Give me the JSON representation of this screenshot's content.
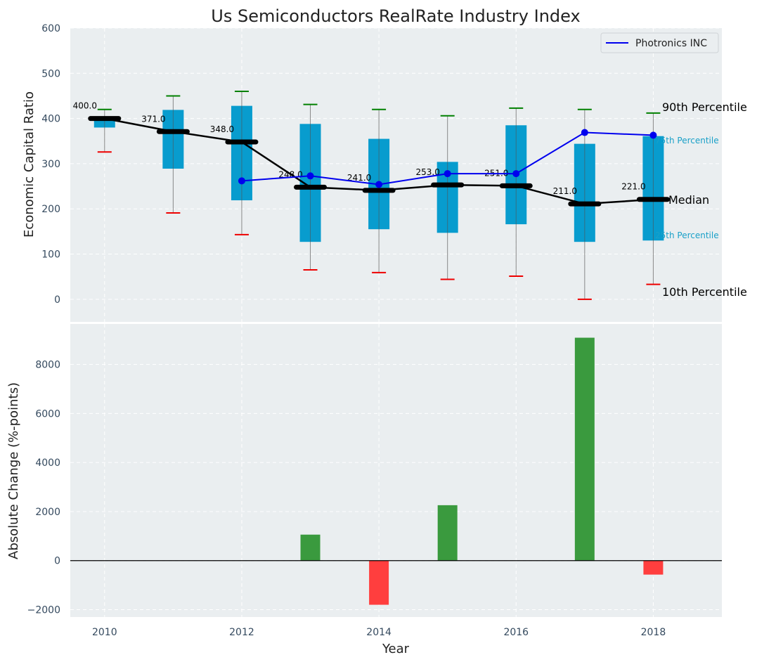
{
  "chart_data": [
    {
      "type": "box",
      "title": "Us Semiconductors RealRate Industry Index",
      "xlabel": "",
      "ylabel": "Economic Capital Ratio",
      "ylim": [
        -50,
        600
      ],
      "xlim": [
        2009.5,
        2019
      ],
      "yticks": [
        0,
        100,
        200,
        300,
        400,
        500,
        600
      ],
      "grid": true,
      "categories": [
        2010,
        2011,
        2012,
        2013,
        2014,
        2015,
        2016,
        2017,
        2018
      ],
      "series": [
        {
          "name": "90th Percentile",
          "values": [
            420,
            450,
            460,
            431,
            420,
            406,
            423,
            420,
            412
          ]
        },
        {
          "name": "75th Percentile",
          "values": [
            400,
            419,
            428,
            388,
            355,
            304,
            385,
            344,
            361
          ]
        },
        {
          "name": "Median",
          "values": [
            400,
            371,
            348,
            248,
            241,
            253,
            251,
            211,
            221
          ]
        },
        {
          "name": "25th Percentile",
          "values": [
            380,
            289,
            219,
            127,
            155,
            147,
            166,
            127,
            130
          ]
        },
        {
          "name": "10th Percentile",
          "values": [
            326,
            191,
            143,
            65,
            59,
            44,
            51,
            0,
            33
          ]
        },
        {
          "name": "Photronics INC",
          "x": [
            2012,
            2013,
            2014,
            2015,
            2016,
            2017,
            2018
          ],
          "values": [
            262,
            273,
            254,
            278,
            278,
            369,
            363
          ]
        }
      ],
      "median_labels": [
        "400.0",
        "371.0",
        "348.0",
        "248.0",
        "241.0",
        "253.0",
        "251.0",
        "211.0",
        "221.0"
      ],
      "annotations": {
        "p90": "90th Percentile",
        "p75": "75th Percentile",
        "median": "Median",
        "p25": "25th Percentile",
        "p10": "10th Percentile"
      },
      "legend": {
        "entries": [
          "Photronics INC"
        ],
        "placement": "top-right"
      },
      "colors": {
        "box": "#0099cc",
        "median": "#000000",
        "company": "#0000ee",
        "p90": "#008000",
        "p10": "#ee0000",
        "pct_label": "#1aa0c8"
      }
    },
    {
      "type": "bar",
      "xlabel": "Year",
      "ylabel": "Absolute Change (%-points)",
      "ylim": [
        -2300,
        9650
      ],
      "yticks": [
        -2000,
        0,
        2000,
        4000,
        6000,
        8000
      ],
      "xticks": [
        2010,
        2012,
        2014,
        2016,
        2018
      ],
      "grid": true,
      "categories": [
        2013,
        2014,
        2015,
        2017,
        2018
      ],
      "values": [
        1060,
        -1800,
        2260,
        9090,
        -570
      ],
      "colors": {
        "positive": "#3a9a3e",
        "negative": "#ff3e3e"
      }
    }
  ]
}
